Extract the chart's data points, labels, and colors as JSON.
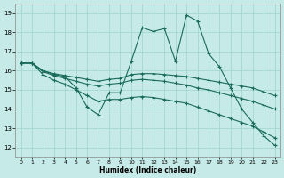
{
  "xlabel": "Humidex (Indice chaleur)",
  "bg_color": "#c5eae7",
  "grid_color": "#a0d4ce",
  "line_color": "#1a6b5a",
  "xlim": [
    -0.5,
    23.5
  ],
  "ylim": [
    11.5,
    19.5
  ],
  "yticks": [
    12,
    13,
    14,
    15,
    16,
    17,
    18,
    19
  ],
  "xticks": [
    0,
    1,
    2,
    3,
    4,
    5,
    6,
    7,
    8,
    9,
    10,
    11,
    12,
    13,
    14,
    15,
    16,
    17,
    18,
    19,
    20,
    21,
    22,
    23
  ],
  "line1_x": [
    0,
    1,
    2,
    3,
    4,
    5,
    6,
    7,
    8,
    9,
    10,
    11,
    12,
    13,
    14,
    15,
    16,
    17,
    18,
    19,
    20,
    21,
    22,
    23
  ],
  "line1_y": [
    16.4,
    16.4,
    16.0,
    15.8,
    15.7,
    15.1,
    14.1,
    13.7,
    14.85,
    14.85,
    16.5,
    18.25,
    18.05,
    18.2,
    16.5,
    18.9,
    18.6,
    16.9,
    16.2,
    15.1,
    14.0,
    13.3,
    12.6,
    12.1
  ],
  "line2_x": [
    0,
    1,
    2,
    3,
    4,
    5,
    6,
    7,
    8,
    9,
    10,
    11,
    12,
    13,
    14,
    15,
    16,
    17,
    18,
    19,
    20,
    21,
    22,
    23
  ],
  "line2_y": [
    16.4,
    16.4,
    16.0,
    15.85,
    15.75,
    15.65,
    15.55,
    15.45,
    15.55,
    15.6,
    15.8,
    15.85,
    15.85,
    15.8,
    15.75,
    15.7,
    15.6,
    15.5,
    15.4,
    15.3,
    15.2,
    15.1,
    14.9,
    14.7
  ],
  "line3_x": [
    0,
    1,
    2,
    3,
    4,
    5,
    6,
    7,
    8,
    9,
    10,
    11,
    12,
    13,
    14,
    15,
    16,
    17,
    18,
    19,
    20,
    21,
    22,
    23
  ],
  "line3_y": [
    16.4,
    16.4,
    15.95,
    15.75,
    15.6,
    15.45,
    15.3,
    15.2,
    15.3,
    15.35,
    15.5,
    15.55,
    15.5,
    15.45,
    15.35,
    15.25,
    15.1,
    15.0,
    14.85,
    14.7,
    14.55,
    14.4,
    14.2,
    14.0
  ],
  "line4_x": [
    0,
    1,
    2,
    3,
    4,
    5,
    6,
    7,
    8,
    9,
    10,
    11,
    12,
    13,
    14,
    15,
    16,
    17,
    18,
    19,
    20,
    21,
    22,
    23
  ],
  "line4_y": [
    16.4,
    16.4,
    15.8,
    15.5,
    15.3,
    15.0,
    14.7,
    14.4,
    14.5,
    14.5,
    14.6,
    14.65,
    14.6,
    14.5,
    14.4,
    14.3,
    14.1,
    13.9,
    13.7,
    13.5,
    13.3,
    13.1,
    12.8,
    12.5
  ]
}
